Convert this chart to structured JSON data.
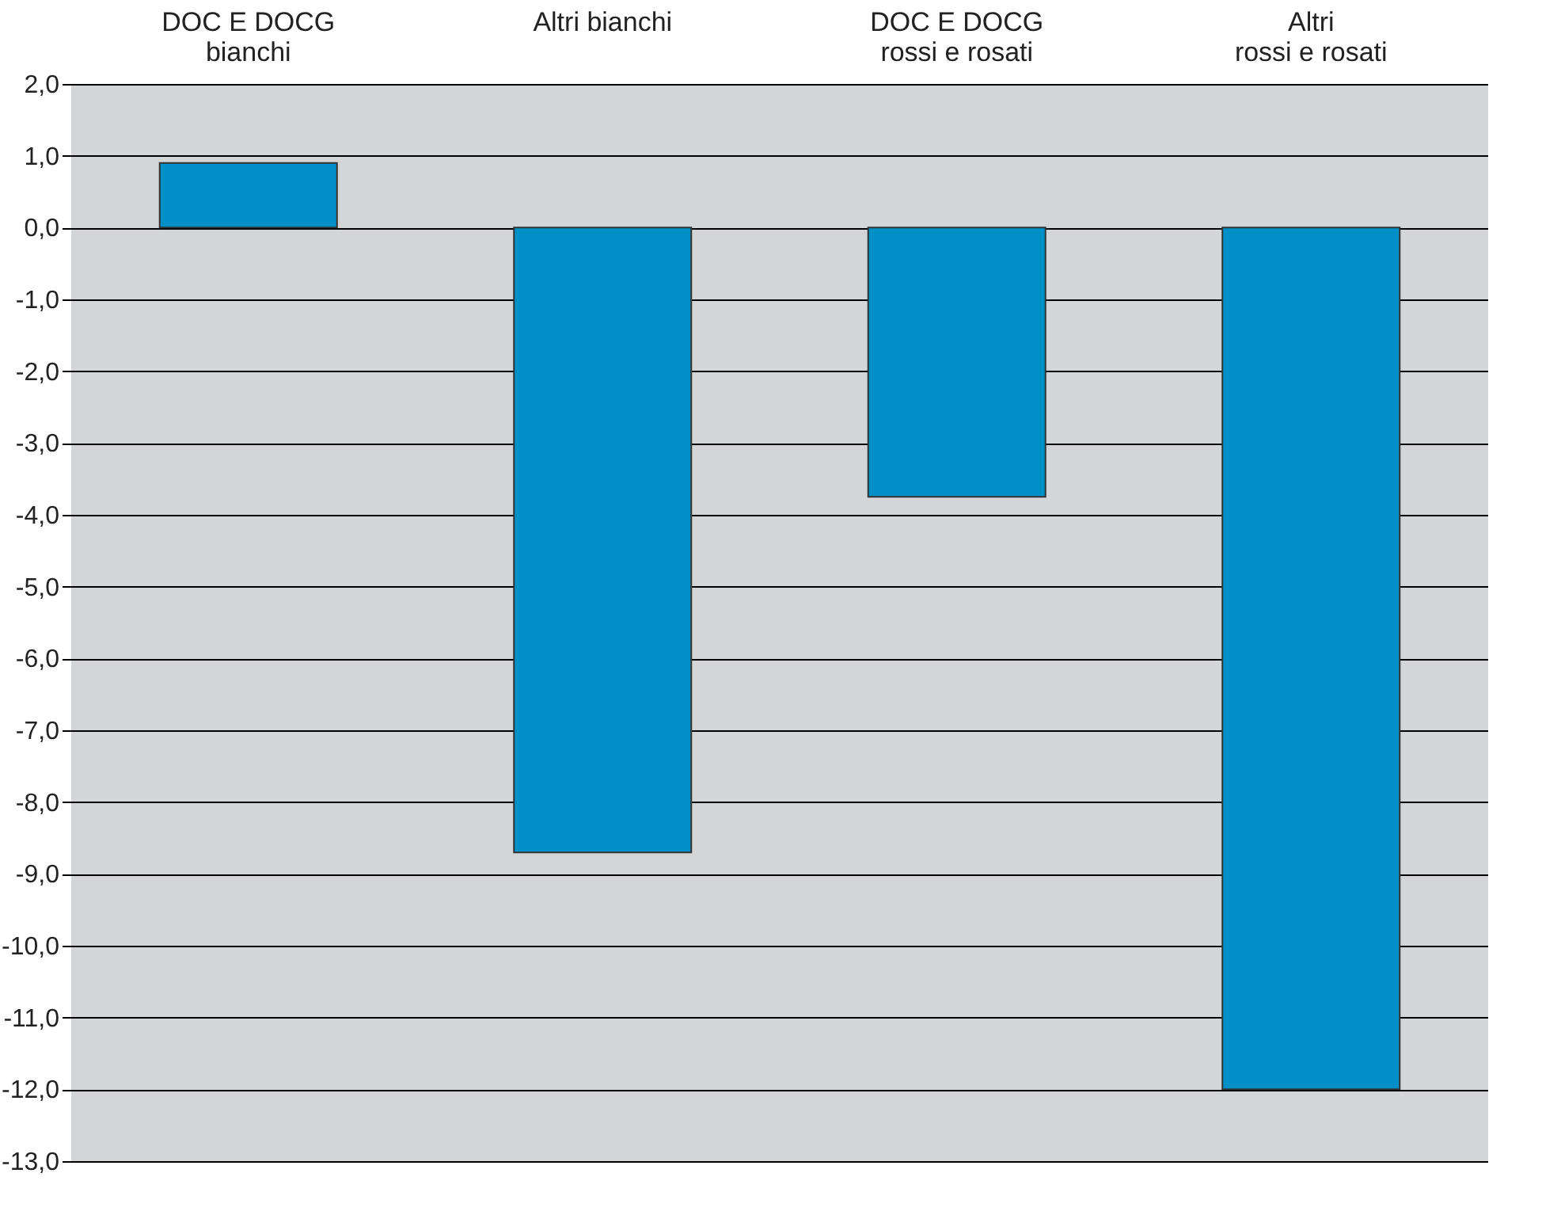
{
  "chart_data": {
    "type": "bar",
    "categories": [
      "DOC E DOCG\nbianchi",
      "Altri bianchi",
      "DOC E DOCG\nrossi e rosati",
      "Altri\nrossi e rosati"
    ],
    "values": [
      0.9,
      -8.7,
      -3.75,
      -12.0
    ],
    "color": "#0090c8",
    "ylim": [
      -13,
      2
    ],
    "yticks": [
      {
        "value": 2,
        "label": "2,0"
      },
      {
        "value": 1,
        "label": "1,0"
      },
      {
        "value": 0,
        "label": "0,0"
      },
      {
        "value": -1,
        "label": "-1,0"
      },
      {
        "value": -2,
        "label": "-2,0"
      },
      {
        "value": -3,
        "label": "-3,0"
      },
      {
        "value": -4,
        "label": "-4,0"
      },
      {
        "value": -5,
        "label": "-5,0"
      },
      {
        "value": -6,
        "label": "-6,0"
      },
      {
        "value": -7,
        "label": "-7,0"
      },
      {
        "value": -8,
        "label": "-8,0"
      },
      {
        "value": -9,
        "label": "-9,0"
      },
      {
        "value": -10,
        "label": "-10,0"
      },
      {
        "value": -11,
        "label": "-11,0"
      },
      {
        "value": -12,
        "label": "-12,0"
      },
      {
        "value": -13,
        "label": "-13,0"
      }
    ],
    "grid": "y"
  }
}
